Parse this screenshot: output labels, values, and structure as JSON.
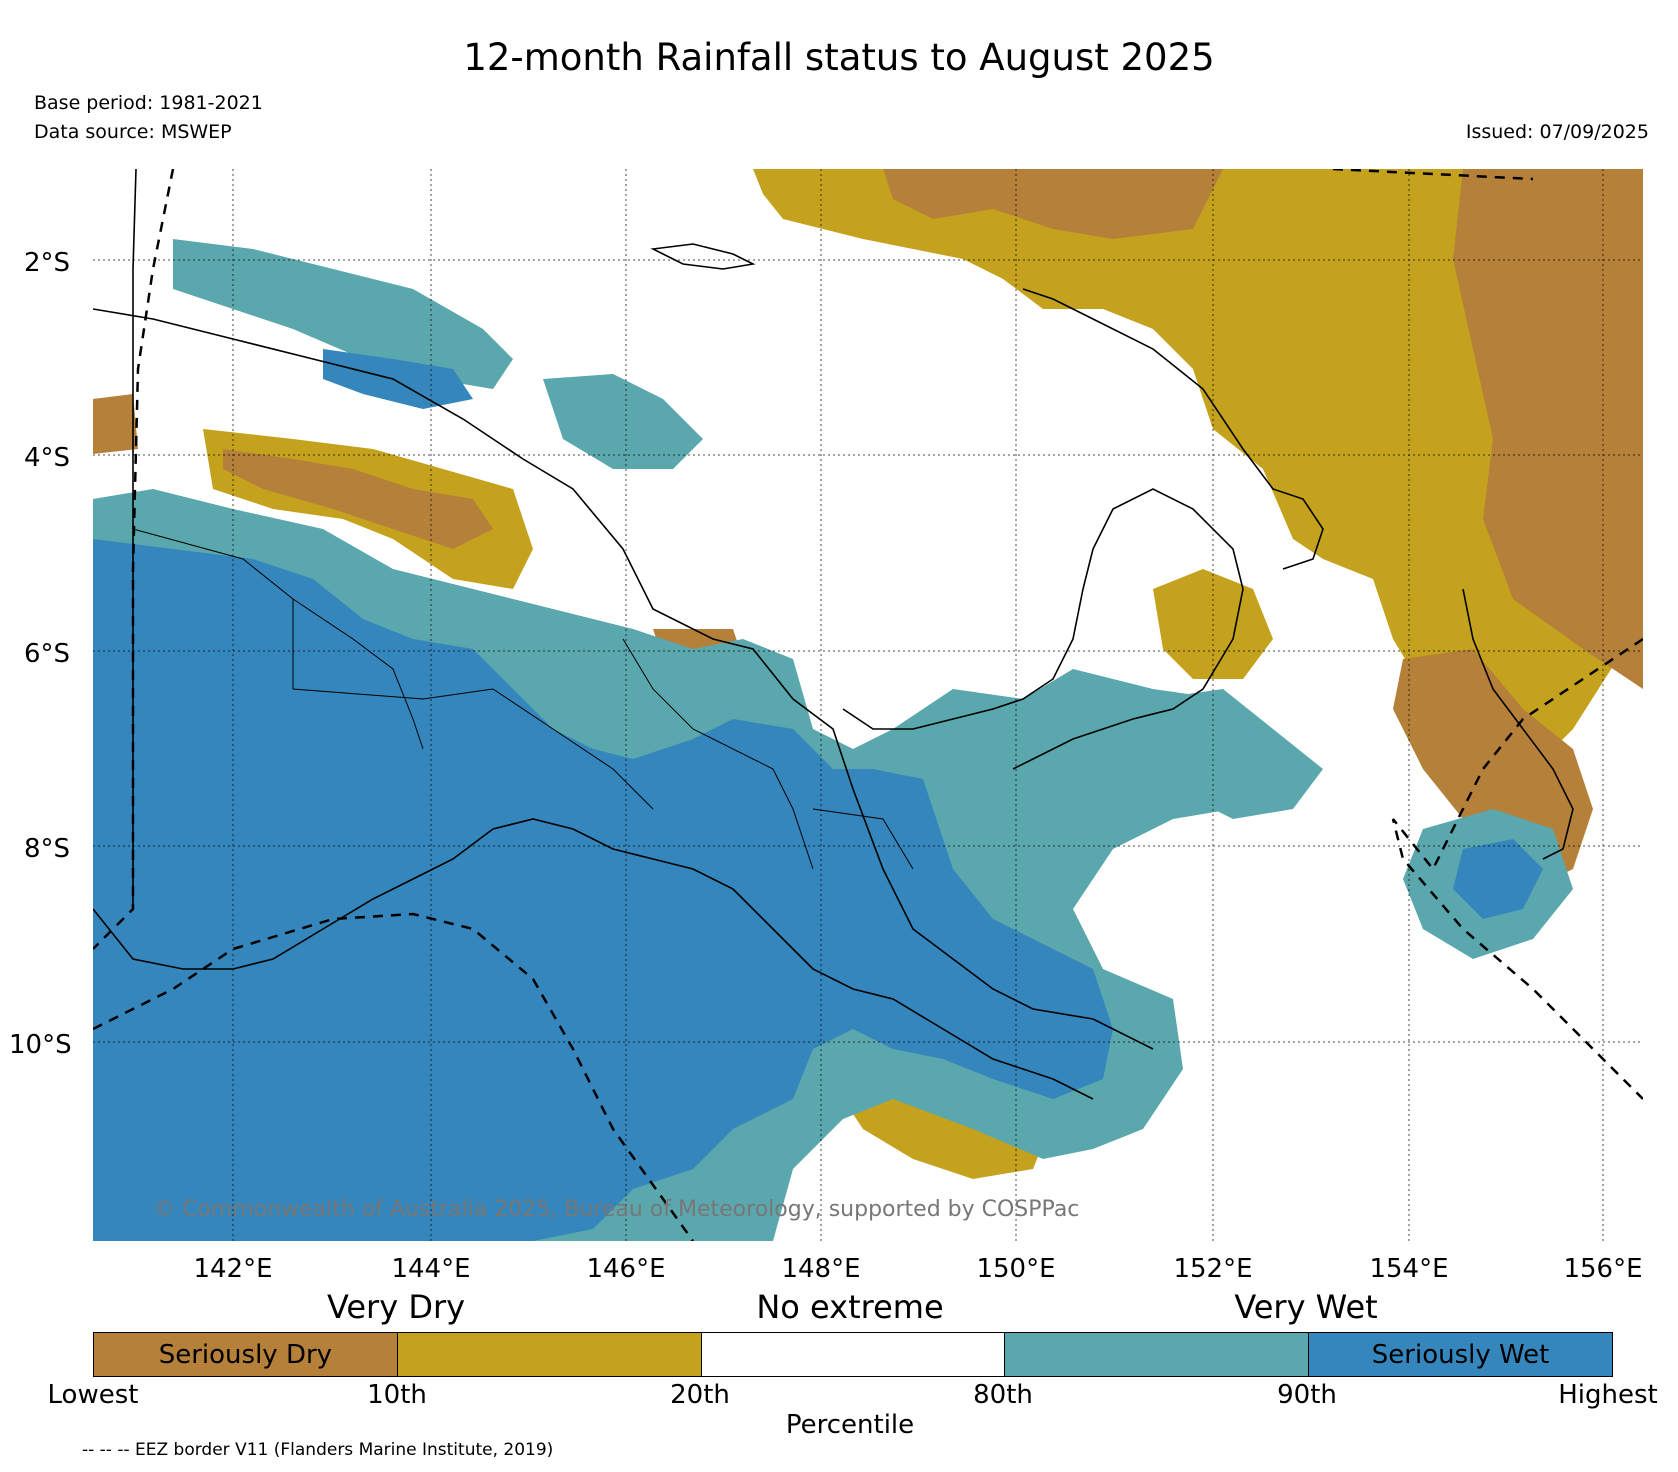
{
  "header": {
    "title": "12-month Rainfall status to August 2025",
    "base_period": "Base period: 1981-2021",
    "data_source": "Data source: MSWEP",
    "issued": "Issued: 07/09/2025"
  },
  "map": {
    "latitude_labels": [
      "2°S",
      "4°S",
      "6°S",
      "8°S",
      "10°S"
    ],
    "longitude_labels": [
      "142°E",
      "144°E",
      "146°E",
      "148°E",
      "150°E",
      "152°E",
      "154°E",
      "156°E"
    ],
    "copyright": "© Commonwealth of Australia 2025, Bureau of Meteorology, supported by COSPPac",
    "colors": {
      "seriously_dry": "#b5803a",
      "very_dry": "#c4a21e",
      "no_extreme": "#ffffff",
      "very_wet": "#5aa7ad",
      "seriously_wet": "#3586bc"
    }
  },
  "legend": {
    "categories": {
      "very_dry": "Very Dry",
      "no_extreme": "No extreme",
      "very_wet": "Very Wet"
    },
    "bins": [
      {
        "label": "Seriously Dry",
        "color": "#b5803a"
      },
      {
        "label": "",
        "color": "#c4a21e"
      },
      {
        "label": "",
        "color": "#ffffff"
      },
      {
        "label": "",
        "color": "#5aa7ad"
      },
      {
        "label": "Seriously Wet",
        "color": "#3586bc"
      }
    ],
    "ticks": [
      "Lowest",
      "10th",
      "20th",
      "80th",
      "90th",
      "Highest"
    ],
    "axis_title": "Percentile"
  },
  "footnote": "-- -- -- EEZ border V11 (Flanders Marine Institute, 2019)"
}
